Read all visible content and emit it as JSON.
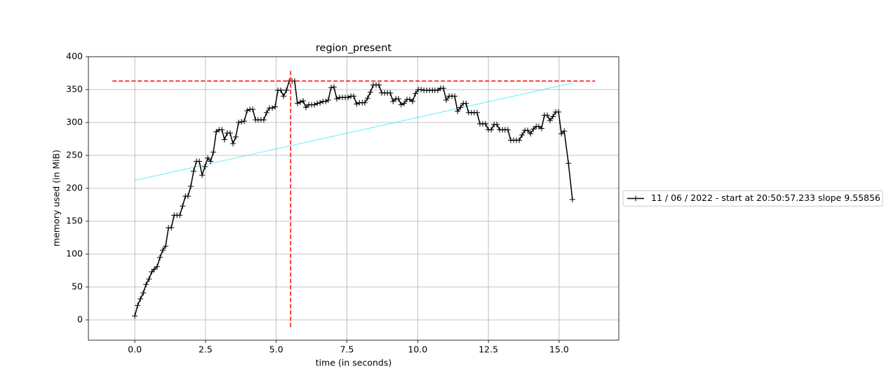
{
  "chart_data": {
    "type": "line",
    "title": "region_present",
    "xlabel": "time (in seconds)",
    "ylabel": "memory used (in MiB)",
    "xlim": [
      -1.64,
      17.11
    ],
    "ylim": [
      -30.85,
      400
    ],
    "xticks": [
      {
        "value": 0,
        "label": "0.0"
      },
      2.5,
      {
        "value": 5,
        "label": "5.0"
      },
      7.5,
      {
        "value": 10,
        "label": "10.0"
      },
      12.5,
      {
        "value": 15,
        "label": "15.0"
      }
    ],
    "yticks": [
      0,
      50,
      100,
      150,
      200,
      250,
      300,
      350,
      400
    ],
    "grid": true,
    "legend": "right-outside",
    "x": [
      0,
      0.1,
      0.2,
      0.3,
      0.4,
      0.5,
      0.6,
      0.69,
      0.79,
      0.89,
      0.99,
      1.09,
      1.19,
      1.29,
      1.39,
      1.49,
      1.59,
      1.69,
      1.79,
      1.88,
      1.98,
      2.08,
      2.18,
      2.28,
      2.38,
      2.48,
      2.58,
      2.68,
      2.78,
      2.88,
      2.98,
      3.08,
      3.17,
      3.27,
      3.37,
      3.47,
      3.57,
      3.67,
      3.77,
      3.87,
      3.97,
      4.07,
      4.17,
      4.27,
      4.36,
      4.46,
      4.56,
      4.66,
      4.76,
      4.86,
      4.96,
      5.06,
      5.16,
      5.26,
      5.36,
      5.46,
      5.56,
      5.65,
      5.75,
      5.85,
      5.95,
      6.05,
      6.15,
      6.25,
      6.35,
      6.45,
      6.55,
      6.65,
      6.75,
      6.84,
      6.94,
      7.04,
      7.14,
      7.24,
      7.34,
      7.44,
      7.54,
      7.64,
      7.74,
      7.84,
      7.94,
      8.04,
      8.13,
      8.23,
      8.33,
      8.43,
      8.53,
      8.63,
      8.73,
      8.83,
      8.93,
      9.03,
      9.13,
      9.23,
      9.32,
      9.42,
      9.52,
      9.62,
      9.72,
      9.82,
      9.92,
      10.02,
      10.12,
      10.22,
      10.32,
      10.42,
      10.52,
      10.61,
      10.71,
      10.81,
      10.91,
      11.01,
      11.11,
      11.21,
      11.31,
      11.41,
      11.51,
      11.61,
      11.71,
      11.8,
      11.9,
      12.0,
      12.1,
      12.2,
      12.3,
      12.4,
      12.5,
      12.6,
      12.7,
      12.8,
      12.9,
      13.0,
      13.09,
      13.19,
      13.29,
      13.39,
      13.49,
      13.59,
      13.69,
      13.79,
      13.89,
      13.99,
      14.09,
      14.19,
      14.28,
      14.38,
      14.48,
      14.58,
      14.68,
      14.78,
      14.88,
      14.98,
      15.08,
      15.18,
      15.33,
      15.47
    ],
    "series": [
      {
        "name": "11 / 06 / 2022 - start at 20:50:57.233 slope 9.55856",
        "color": "#000000",
        "values": [
          6,
          22,
          32,
          41,
          54,
          62,
          73,
          77,
          81,
          95,
          106,
          112,
          140,
          140,
          159,
          159,
          159,
          173,
          188,
          188,
          203,
          226,
          241,
          241,
          220,
          233,
          246,
          241,
          255,
          286,
          289,
          289,
          274,
          284,
          284,
          268,
          278,
          300,
          301,
          302,
          318,
          320,
          320,
          304,
          304,
          304,
          304,
          315,
          322,
          322,
          324,
          349,
          349,
          340,
          349,
          363,
          363,
          363,
          329,
          331,
          333,
          323,
          327,
          327,
          327,
          329,
          330,
          332,
          332,
          334,
          353,
          354,
          336,
          338,
          338,
          338,
          338,
          340,
          340,
          328,
          330,
          330,
          330,
          337,
          346,
          357,
          357,
          357,
          345,
          345,
          345,
          345,
          332,
          336,
          336,
          327,
          329,
          335,
          335,
          332,
          344,
          350,
          350,
          349,
          349,
          349,
          349,
          349,
          349,
          352,
          352,
          334,
          340,
          340,
          340,
          317,
          323,
          329,
          329,
          315,
          315,
          315,
          315,
          298,
          298,
          298,
          289,
          289,
          297,
          297,
          289,
          289,
          289,
          289,
          273,
          273,
          273,
          273,
          281,
          288,
          288,
          283,
          290,
          294,
          294,
          291,
          311,
          311,
          303,
          309,
          316,
          316,
          283,
          287,
          238,
          183
        ]
      }
    ],
    "trend": {
      "color": "#00e5ee",
      "x": [
        0,
        15.47
      ],
      "values": [
        212,
        360
      ]
    },
    "reference_lines": [
      {
        "orientation": "horizontal",
        "value": 363,
        "from": -0.79,
        "to": 16.27,
        "color": "#ff0000"
      },
      {
        "orientation": "vertical",
        "value": 5.51,
        "from": -11,
        "to": 381,
        "color": "#ff0000"
      }
    ]
  }
}
